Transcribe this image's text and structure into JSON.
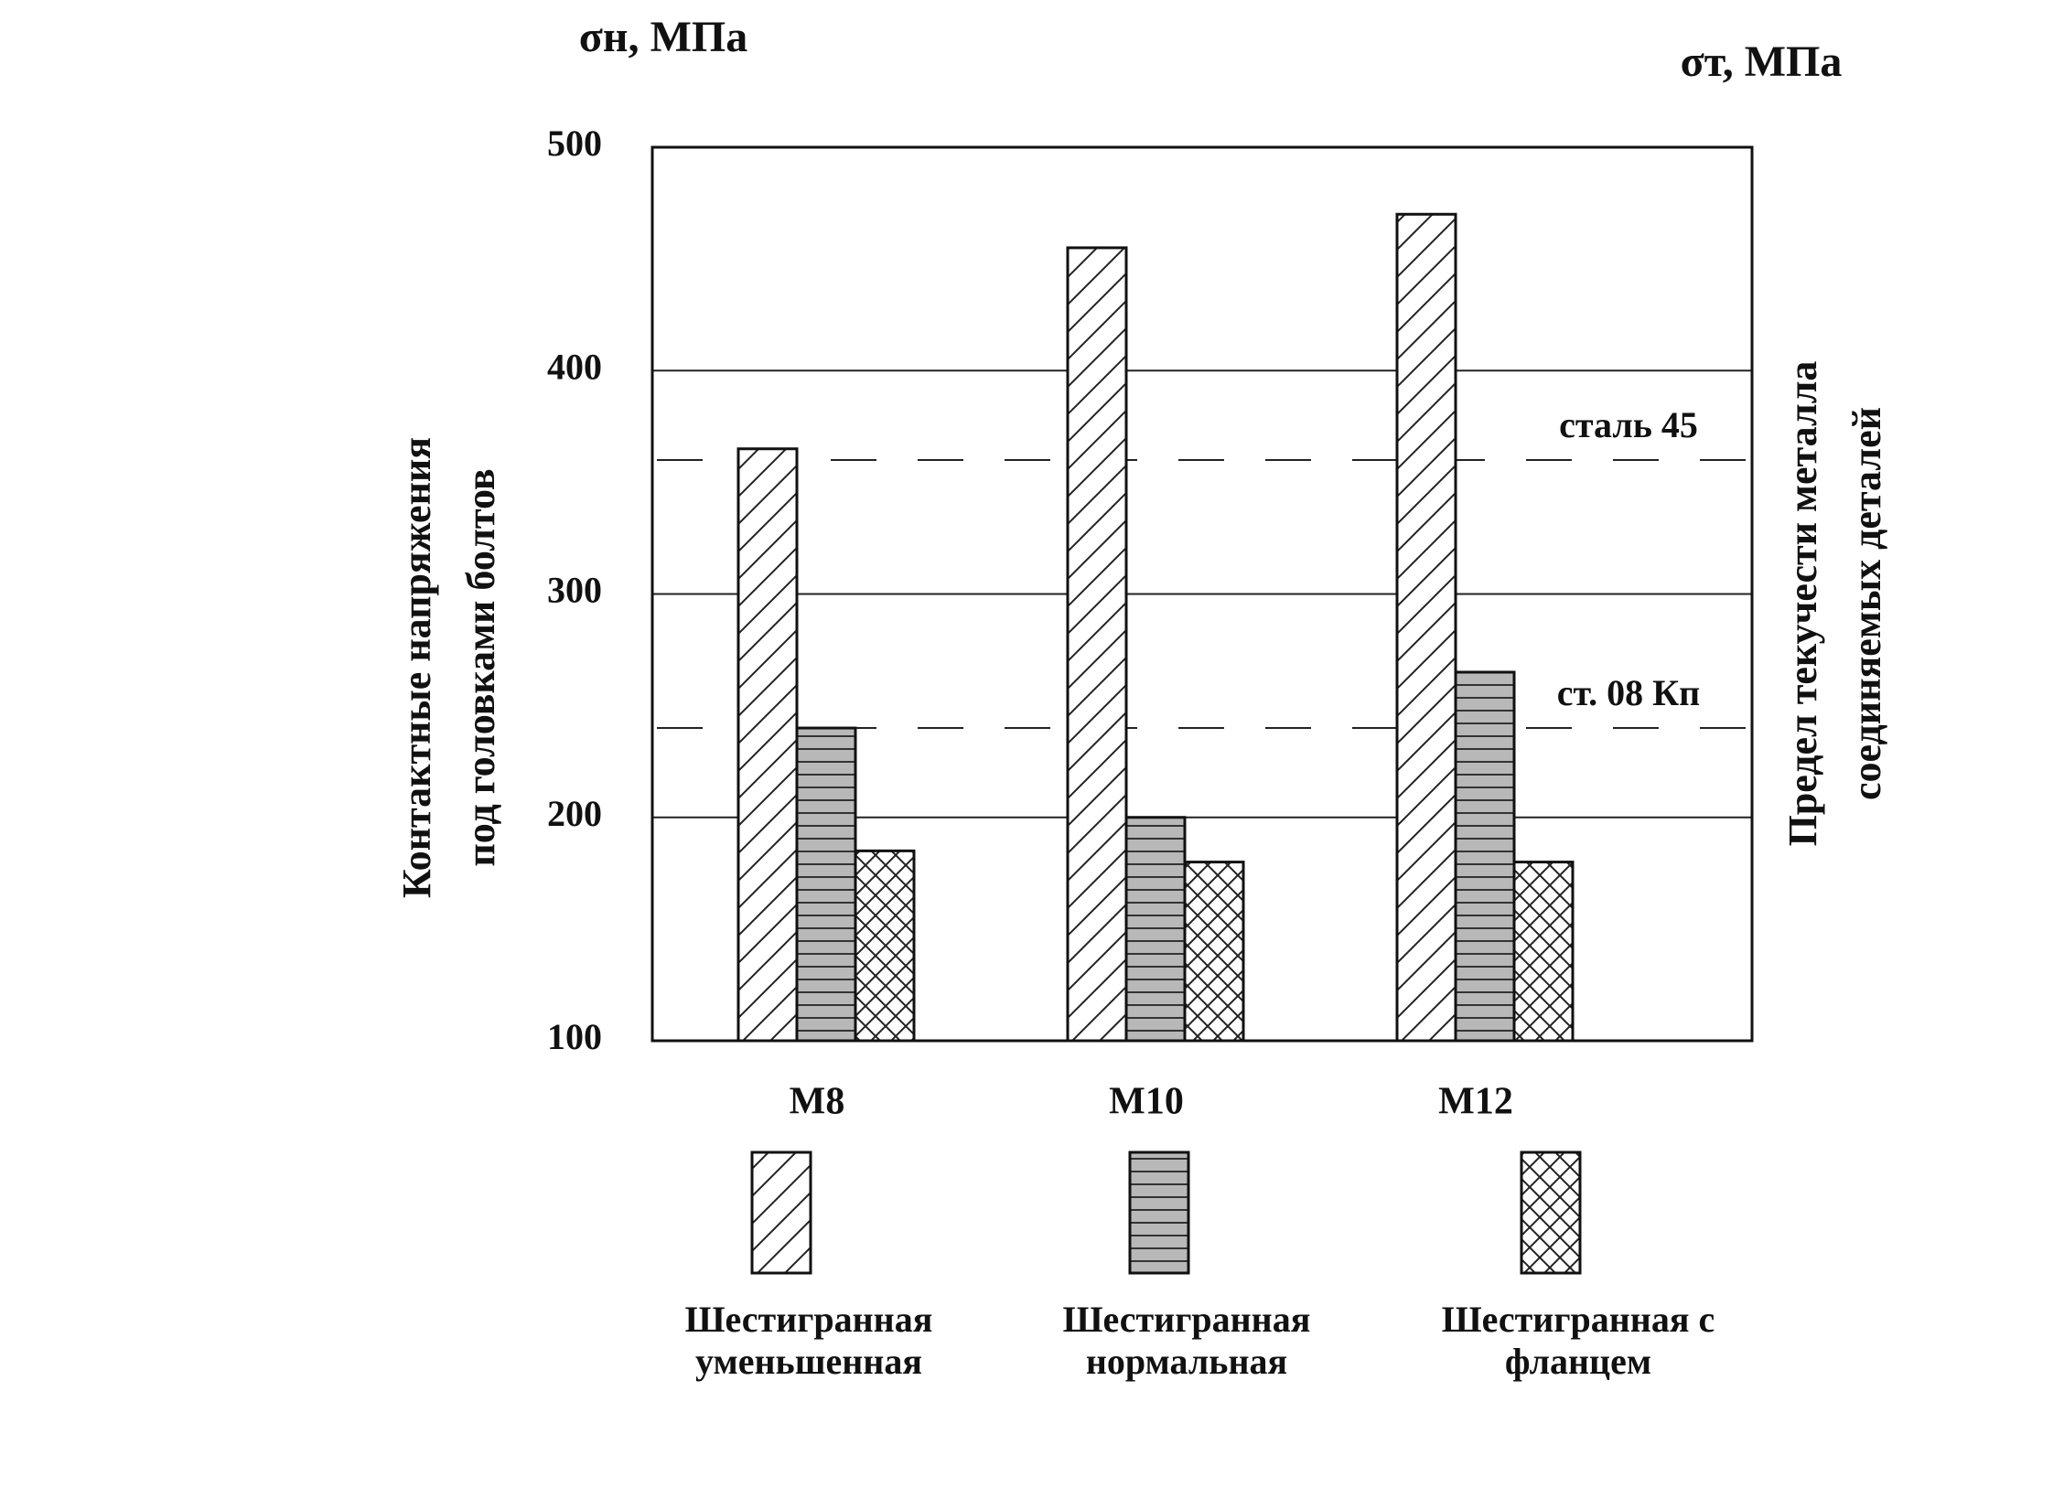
{
  "chart_data": {
    "type": "bar",
    "y_unit_label": "σн, МПа",
    "y2_unit_label": "σт, МПа",
    "y_label": [
      "Контактные напряжения",
      "под головками болтов"
    ],
    "y2_label": [
      "Предел текучести металла",
      "соединяемых деталей"
    ],
    "categories": [
      "M8",
      "M10",
      "M12"
    ],
    "series": [
      {
        "name": "Шестигранная уменьшенная",
        "color": "#222222",
        "pattern": "diagonal",
        "values": [
          365,
          455,
          470
        ]
      },
      {
        "name": "Шестигранная нормальная",
        "color": "#333333",
        "pattern": "horizontal",
        "values": [
          240,
          200,
          265
        ]
      },
      {
        "name": "Шестигранная с фланцем",
        "color": "#222222",
        "pattern": "crosshatch",
        "values": [
          185,
          180,
          180
        ]
      }
    ],
    "reference_lines": [
      {
        "label": "сталь 45",
        "value": 360
      },
      {
        "label": "ст. 08 Кп",
        "value": 240
      }
    ],
    "ylim": [
      100,
      500
    ],
    "yticks": [
      100,
      200,
      300,
      400,
      500
    ],
    "grid": true
  }
}
